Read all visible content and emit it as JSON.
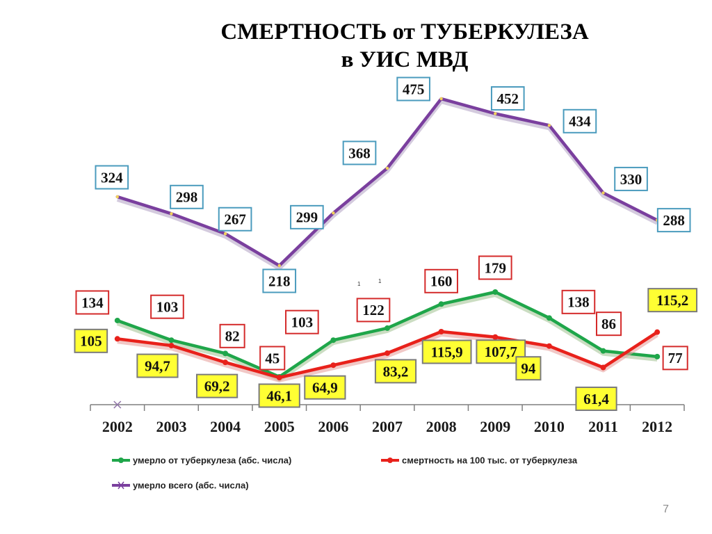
{
  "slide": {
    "title_line1": "СМЕРТНОСТЬ от ТУБЕРКУЛЕЗА",
    "title_line2": "в  УИС  МВД",
    "page_number": "7"
  },
  "chart_data": {
    "type": "line",
    "title": "СМЕРТНОСТЬ от ТУБЕРКУЛЕЗА в УИС МВД",
    "categories": [
      "2002",
      "2003",
      "2004",
      "2005",
      "2006",
      "2007",
      "2008",
      "2009",
      "2010",
      "2011",
      "2012"
    ],
    "series": [
      {
        "name": "умерло от туберкулеза (абс. числа)",
        "values": [
          134,
          103,
          82,
          45,
          103,
          122,
          160,
          179,
          138,
          86,
          77
        ],
        "labels": [
          "134",
          "103",
          "82",
          "45",
          "103",
          "122",
          "160",
          "179",
          "138",
          "86",
          "77"
        ],
        "color": "#1fa64a",
        "label_box_border": "#d42a2a",
        "label_box_fill": "#ffffff"
      },
      {
        "name": "смертность на 100 тыс. от туберкулеза",
        "values": [
          105,
          94.7,
          69.2,
          46.1,
          64.9,
          83.2,
          115.9,
          107.7,
          94,
          61.4,
          115.2
        ],
        "labels": [
          "105",
          "94,7",
          "69,2",
          "46,1",
          "64,9",
          "83,2",
          "115,9",
          "107,7",
          "94",
          "61,4",
          "115,2"
        ],
        "color": "#e8211b",
        "label_box_border": "#7a7a7a",
        "label_box_fill": "#ffff33"
      },
      {
        "name": "умерло всего (абс. числа)",
        "values": [
          324,
          298,
          267,
          218,
          299,
          368,
          475,
          452,
          434,
          330,
          288
        ],
        "labels": [
          "324",
          "298",
          "267",
          "218",
          "299",
          "368",
          "475",
          "452",
          "434",
          "330",
          "288"
        ],
        "color": "#7a3f9e",
        "label_box_border": "#4a9bbd",
        "label_box_fill": "#ffffff"
      }
    ],
    "stray_marks": [
      "1",
      "1"
    ],
    "grid": false,
    "legend_position": "bottom"
  }
}
